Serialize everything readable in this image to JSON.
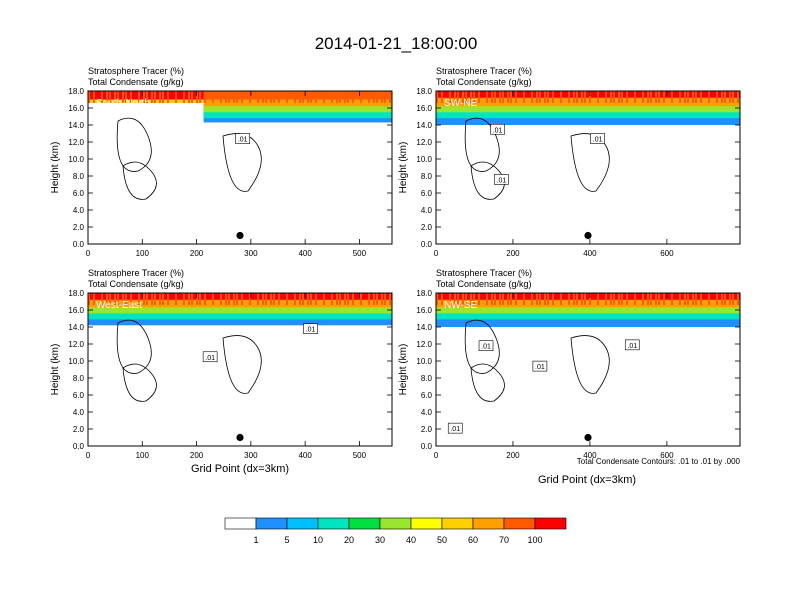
{
  "title": "2014-01-21_18:00:00",
  "panel_headers": {
    "line1": "Stratosphere Tracer   (%)",
    "line2": "Total Condensate   (g/kg)"
  },
  "ylabel": "Height (km)",
  "xlabel": "Grid Point (dx=3km)",
  "contour_note": "Total Condensate Contours: .01 to .01 by .000",
  "contour_label": ".01",
  "chart_data": [
    {
      "type": "heatmap",
      "panel": "South-North",
      "xlim": [
        0,
        560
      ],
      "ylim": [
        0,
        18
      ],
      "xticks": [
        0,
        100,
        200,
        300,
        400,
        500
      ],
      "yticks": [
        0,
        2,
        4,
        6,
        8,
        10,
        12,
        14,
        16,
        18
      ],
      "marker_x": 280,
      "marker_y": 1.0,
      "tracer_cells": [
        [
          0,
          213,
          17,
          100
        ],
        [
          213,
          560,
          17,
          90
        ],
        [
          0,
          213,
          16.6,
          50
        ],
        [
          213,
          560,
          16.2,
          60
        ],
        [
          213,
          560,
          15.5,
          30
        ],
        [
          213,
          560,
          14.8,
          10
        ],
        [
          213,
          560,
          14.3,
          1
        ]
      ],
      "contour_labels": [
        {
          "x": 285,
          "y": 12.4
        }
      ]
    },
    {
      "type": "heatmap",
      "panel": "SW-NE",
      "xlim": [
        0,
        790
      ],
      "ylim": [
        0,
        18
      ],
      "xticks": [
        0,
        200,
        400,
        600
      ],
      "yticks": [
        0,
        2,
        4,
        6,
        8,
        10,
        12,
        14,
        16,
        18
      ],
      "marker_x": 395,
      "marker_y": 1.0,
      "tracer_cells": [
        [
          0,
          790,
          17.2,
          100
        ],
        [
          0,
          790,
          16.2,
          60
        ],
        [
          0,
          790,
          15.5,
          30
        ],
        [
          0,
          790,
          14.8,
          10
        ],
        [
          0,
          790,
          14.0,
          1
        ]
      ],
      "contour_labels": [
        {
          "x": 160,
          "y": 13.5
        },
        {
          "x": 420,
          "y": 12.4
        },
        {
          "x": 170,
          "y": 7.6
        }
      ]
    },
    {
      "type": "heatmap",
      "panel": "West-East",
      "xlim": [
        0,
        560
      ],
      "ylim": [
        0,
        18
      ],
      "xticks": [
        0,
        100,
        200,
        300,
        400,
        500
      ],
      "yticks": [
        0,
        2,
        4,
        6,
        8,
        10,
        12,
        14,
        16,
        18
      ],
      "marker_x": 280,
      "marker_y": 1.0,
      "tracer_cells": [
        [
          0,
          560,
          17.2,
          100
        ],
        [
          0,
          560,
          16.3,
          60
        ],
        [
          0,
          560,
          15.6,
          30
        ],
        [
          0,
          560,
          14.9,
          10
        ],
        [
          0,
          560,
          14.2,
          1
        ]
      ],
      "contour_labels": [
        {
          "x": 225,
          "y": 10.5
        },
        {
          "x": 410,
          "y": 13.8
        }
      ]
    },
    {
      "type": "heatmap",
      "panel": "NW-SE",
      "xlim": [
        0,
        790
      ],
      "ylim": [
        0,
        18
      ],
      "xticks": [
        0,
        200,
        400,
        600
      ],
      "yticks": [
        0,
        2,
        4,
        6,
        8,
        10,
        12,
        14,
        16,
        18
      ],
      "marker_x": 395,
      "marker_y": 1.0,
      "tracer_cells": [
        [
          0,
          790,
          17.2,
          100
        ],
        [
          0,
          790,
          16.3,
          60
        ],
        [
          0,
          790,
          15.6,
          30
        ],
        [
          0,
          790,
          14.9,
          10
        ],
        [
          0,
          790,
          14.0,
          1
        ]
      ],
      "contour_labels": [
        {
          "x": 130,
          "y": 11.8
        },
        {
          "x": 270,
          "y": 9.4
        },
        {
          "x": 510,
          "y": 11.9
        },
        {
          "x": 50,
          "y": 2.1
        }
      ]
    }
  ],
  "colorbar": {
    "colors": [
      "#ffffff",
      "#1e90ff",
      "#00bfff",
      "#00e5c0",
      "#00e040",
      "#99e62e",
      "#ffff00",
      "#ffd000",
      "#ffa000",
      "#ff5a00",
      "#ff0000"
    ],
    "labels": [
      "1",
      "5",
      "10",
      "20",
      "30",
      "40",
      "50",
      "60",
      "70",
      "100"
    ]
  }
}
